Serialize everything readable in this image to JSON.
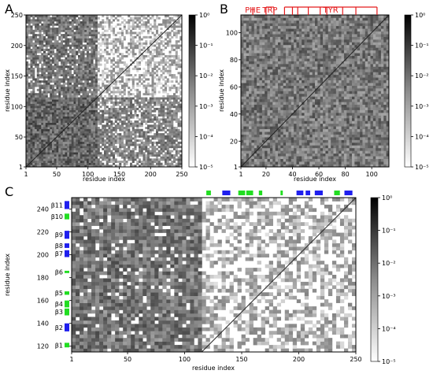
{
  "chart_data": [
    {
      "panel": "A",
      "type": "heatmap",
      "title": "",
      "xlabel": "residue index",
      "ylabel": "residue index",
      "x_ticks": [
        1,
        50,
        100,
        150,
        200,
        250
      ],
      "y_ticks": [
        1,
        50,
        100,
        150,
        200,
        250
      ],
      "x_range": [
        1,
        250
      ],
      "y_range": [
        1,
        250
      ],
      "colorscale": "log",
      "color_range": [
        1e-05,
        1
      ],
      "colorbar_ticks": [
        "10^0",
        "10^-1",
        "10^-2",
        "10^-3",
        "10^-4",
        "10^-5"
      ],
      "regions": [
        {
          "x": [
            1,
            115
          ],
          "y": [
            1,
            115
          ],
          "level": 0.004
        },
        {
          "x": [
            1,
            115
          ],
          "y": [
            115,
            250
          ],
          "level": 0.002
        },
        {
          "x": [
            115,
            250
          ],
          "y": [
            1,
            115
          ],
          "level": 0.001
        },
        {
          "x": [
            115,
            250
          ],
          "y": [
            115,
            250
          ],
          "level": 0.0002
        }
      ]
    },
    {
      "panel": "B",
      "type": "heatmap",
      "title": "",
      "xlabel": "residue index",
      "ylabel": "residue index",
      "x_ticks": [
        1,
        20,
        40,
        60,
        80,
        100
      ],
      "y_ticks": [
        1,
        20,
        40,
        60,
        80,
        100
      ],
      "x_range": [
        1,
        113
      ],
      "y_range": [
        1,
        113
      ],
      "colorscale": "log",
      "color_range": [
        1e-05,
        1
      ],
      "colorbar_ticks": [
        "10^0",
        "10^-1",
        "10^-2",
        "10^-3",
        "10^-4",
        "10^-5"
      ],
      "annotations": [
        {
          "label": "PHE",
          "residues": [
            10
          ]
        },
        {
          "label": "TRP",
          "residues": [
            20,
            26
          ]
        },
        {
          "label": "TYR",
          "residues": [
            34,
            40,
            44,
            52,
            61,
            66,
            78,
            88,
            104
          ]
        }
      ],
      "annotation_color": "#e41a1c"
    },
    {
      "panel": "C",
      "type": "heatmap",
      "title": "",
      "xlabel": "residue index",
      "ylabel": "residue index",
      "x_ticks": [
        1,
        50,
        100,
        150,
        200,
        250
      ],
      "y_ticks": [
        120,
        140,
        160,
        180,
        200,
        220,
        240
      ],
      "x_range": [
        1,
        250
      ],
      "y_range": [
        115,
        250
      ],
      "colorscale": "log",
      "color_range": [
        1e-05,
        1
      ],
      "colorbar_ticks": [
        "10^0",
        "10^-1",
        "10^-2",
        "10^-3",
        "10^-4",
        "10^-5"
      ],
      "strands": [
        {
          "label": "β1",
          "range": [
            119,
            123
          ],
          "color": "#22dd22"
        },
        {
          "label": "β2",
          "range": [
            133,
            140
          ],
          "color": "#1f1fee"
        },
        {
          "label": "β3",
          "range": [
            147,
            153
          ],
          "color": "#22dd22"
        },
        {
          "label": "β4",
          "range": [
            154,
            160
          ],
          "color": "#22dd22"
        },
        {
          "label": "β5",
          "range": [
            165,
            168
          ],
          "color": "#22dd22"
        },
        {
          "label": "β6",
          "range": [
            184,
            186
          ],
          "color": "#22dd22"
        },
        {
          "label": "β7",
          "range": [
            198,
            204
          ],
          "color": "#1f1fee"
        },
        {
          "label": "β8",
          "range": [
            206,
            210
          ],
          "color": "#1f1fee"
        },
        {
          "label": "β9",
          "range": [
            214,
            221
          ],
          "color": "#1f1fee"
        },
        {
          "label": "β10",
          "range": [
            231,
            236
          ],
          "color": "#22dd22"
        },
        {
          "label": "β11",
          "range": [
            240,
            247
          ],
          "color": "#1f1fee"
        }
      ],
      "regions": [
        {
          "x": [
            1,
            115
          ],
          "y": [
            115,
            250
          ],
          "level": 0.002
        },
        {
          "x": [
            115,
            250
          ],
          "y": [
            115,
            250
          ],
          "level": 0.0002
        }
      ]
    }
  ]
}
